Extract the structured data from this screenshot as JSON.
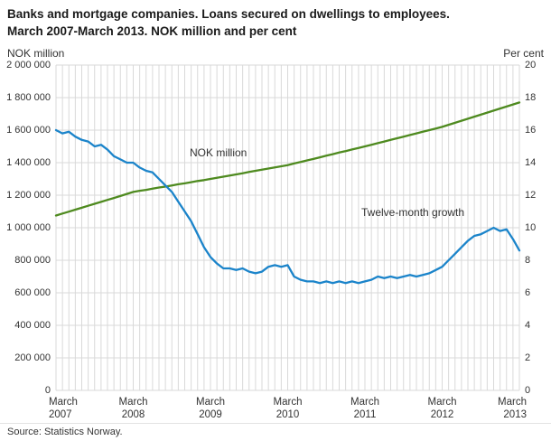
{
  "title": {
    "line1": "Banks and mortgage companies. Loans secured on dwellings to employees.",
    "line2": "March 2007-March 2013. NOK million and per cent"
  },
  "axes": {
    "left_title": "NOK million",
    "right_title": "Per cent",
    "left_ticks": [
      "2 000 000",
      "1 800 000",
      "1 600 000",
      "1 400 000",
      "1 200 000",
      "1 000 000",
      "800 000",
      "600 000",
      "400 000",
      "200 000",
      "0"
    ],
    "right_ticks": [
      "20",
      "18",
      "16",
      "14",
      "12",
      "10",
      "8",
      "6",
      "4",
      "2",
      "0"
    ]
  },
  "series_labels": {
    "nok": "NOK million",
    "growth": "Twelve-month growth"
  },
  "source": "Source: Statistics Norway.",
  "colors": {
    "nok_line": "#4e8a1f",
    "growth_line": "#1b84ca",
    "grid": "#d9d9d9",
    "text": "#333333"
  },
  "chart_data": {
    "type": "line",
    "title": "Banks and mortgage companies. Loans secured on dwellings to employees. March 2007-March 2013. NOK million and per cent",
    "x_monthly_range": [
      "2007-03",
      "2013-03"
    ],
    "x_ticks": [
      {
        "month": "March",
        "year": "2007",
        "index": 0
      },
      {
        "month": "March",
        "year": "2008",
        "index": 12
      },
      {
        "month": "March",
        "year": "2009",
        "index": 24
      },
      {
        "month": "March",
        "year": "2010",
        "index": 36
      },
      {
        "month": "March",
        "year": "2011",
        "index": 48
      },
      {
        "month": "March",
        "year": "2012",
        "index": 60
      },
      {
        "month": "March",
        "year": "2013",
        "index": 72
      }
    ],
    "left_axis": {
      "label": "NOK million",
      "range": [
        0,
        2000000
      ],
      "grid": true
    },
    "right_axis": {
      "label": "Per cent",
      "range": [
        0,
        20
      ]
    },
    "legend_position": "inline-labels",
    "series": [
      {
        "name": "NOK million",
        "axis": "left",
        "color": "#4e8a1f",
        "values": [
          1075000,
          1087000,
          1099000,
          1111000,
          1123000,
          1135000,
          1147000,
          1159000,
          1171000,
          1183000,
          1195000,
          1208000,
          1220000,
          1227000,
          1233000,
          1240000,
          1247000,
          1253000,
          1260000,
          1267000,
          1273000,
          1280000,
          1287000,
          1293000,
          1300000,
          1307000,
          1314000,
          1321000,
          1328000,
          1335000,
          1343000,
          1350000,
          1357000,
          1364000,
          1371000,
          1378000,
          1385000,
          1395000,
          1404000,
          1414000,
          1423000,
          1433000,
          1443000,
          1452000,
          1462000,
          1471000,
          1481000,
          1490000,
          1500000,
          1510000,
          1520000,
          1530000,
          1540000,
          1550000,
          1560000,
          1570000,
          1580000,
          1590000,
          1600000,
          1610000,
          1620000,
          1633000,
          1645000,
          1658000,
          1670000,
          1683000,
          1695000,
          1708000,
          1720000,
          1733000,
          1745000,
          1758000,
          1770000
        ]
      },
      {
        "name": "Twelve-month growth",
        "axis": "right",
        "color": "#1b84ca",
        "values": [
          16.0,
          15.8,
          15.9,
          15.6,
          15.4,
          15.3,
          15.0,
          15.1,
          14.8,
          14.4,
          14.2,
          14.0,
          14.0,
          13.7,
          13.5,
          13.4,
          13.0,
          12.6,
          12.2,
          11.6,
          11.0,
          10.4,
          9.6,
          8.8,
          8.2,
          7.8,
          7.5,
          7.5,
          7.4,
          7.5,
          7.3,
          7.2,
          7.3,
          7.6,
          7.7,
          7.6,
          7.7,
          7.0,
          6.8,
          6.7,
          6.7,
          6.6,
          6.7,
          6.6,
          6.7,
          6.6,
          6.7,
          6.6,
          6.7,
          6.8,
          7.0,
          6.9,
          7.0,
          6.9,
          7.0,
          7.1,
          7.0,
          7.1,
          7.2,
          7.4,
          7.6,
          8.0,
          8.4,
          8.8,
          9.2,
          9.5,
          9.6,
          9.8,
          10.0,
          9.8,
          9.9,
          9.3,
          8.6
        ]
      }
    ]
  }
}
